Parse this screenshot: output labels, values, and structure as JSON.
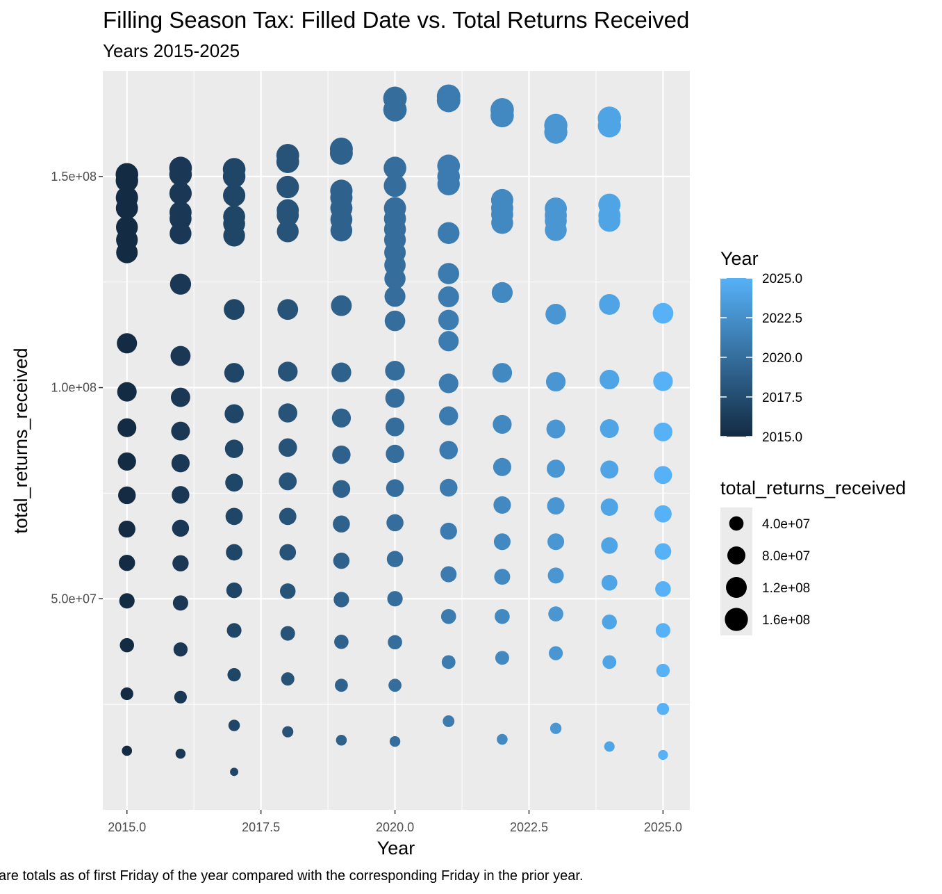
{
  "chart_data": {
    "type": "scatter",
    "title": "Filling Season Tax: Filled Date vs. Total Returns Received",
    "subtitle": "Years 2015-2025",
    "caption": "are totals as of first Friday of the year compared with the corresponding Friday in the prior year.",
    "xlabel": "Year",
    "ylabel": "total_returns_received",
    "xlim": [
      2014.55,
      2025.5
    ],
    "ylim": [
      0,
      175000000
    ],
    "x_ticks": [
      {
        "value": 2015.0,
        "label": "2015.0"
      },
      {
        "value": 2017.5,
        "label": "2017.5"
      },
      {
        "value": 2020.0,
        "label": "2020.0"
      },
      {
        "value": 2022.5,
        "label": "2022.5"
      },
      {
        "value": 2025.0,
        "label": "2025.0"
      }
    ],
    "y_ticks": [
      {
        "value": 50000000,
        "label": "5.0e+07"
      },
      {
        "value": 100000000,
        "label": "1.0e+08"
      },
      {
        "value": 150000000,
        "label": "1.5e+08"
      }
    ],
    "grid": true,
    "background": "#ebebeb",
    "color_low": "#132b43",
    "color_high": "#56b1f7",
    "legend_color": {
      "title": "Year",
      "position": "right",
      "range": [
        2015,
        2025
      ],
      "ticks": [
        {
          "value": 2025.0,
          "label": "2025.0"
        },
        {
          "value": 2022.5,
          "label": "2022.5"
        },
        {
          "value": 2020.0,
          "label": "2020.0"
        },
        {
          "value": 2017.5,
          "label": "2017.5"
        },
        {
          "value": 2015.0,
          "label": "2015.0"
        }
      ]
    },
    "legend_size": {
      "title": "total_returns_received",
      "position": "right",
      "items": [
        {
          "value": 40000000,
          "label": "4.0e+07"
        },
        {
          "value": 80000000,
          "label": "8.0e+07"
        },
        {
          "value": 120000000,
          "label": "1.2e+08"
        },
        {
          "value": 160000000,
          "label": "1.6e+08"
        }
      ]
    },
    "size_range": [
      5,
      17
    ],
    "size_domain": [
      8000000,
      170000000
    ],
    "series": [
      {
        "year": 2015,
        "values": [
          14000000,
          27500000,
          39000000,
          49500000,
          58500000,
          66500000,
          74500000,
          82500000,
          90500000,
          99000000,
          110500000,
          132000000,
          135000000,
          138000000,
          142500000,
          145000000,
          149000000,
          150500000
        ]
      },
      {
        "year": 2016,
        "values": [
          13300000,
          26700000,
          38000000,
          49000000,
          58400000,
          66700000,
          74600000,
          82100000,
          89700000,
          97700000,
          107500000,
          124500000,
          136500000,
          140000000,
          141500000,
          146000000,
          150500000,
          152000000
        ]
      },
      {
        "year": 2017,
        "values": [
          9000000,
          20000000,
          32000000,
          42500000,
          52000000,
          61000000,
          69500000,
          77500000,
          85500000,
          93800000,
          103500000,
          118500000,
          136000000,
          138800000,
          140500000,
          145500000,
          150000000,
          151700000
        ]
      },
      {
        "year": 2018,
        "values": [
          18500000,
          31000000,
          41800000,
          51800000,
          61000000,
          69500000,
          77800000,
          85800000,
          94000000,
          103800000,
          118500000,
          137000000,
          140800000,
          142000000,
          147500000,
          153500000,
          155000000
        ]
      },
      {
        "year": 2019,
        "values": [
          16500000,
          29500000,
          39800000,
          49800000,
          59000000,
          67700000,
          76000000,
          84100000,
          92800000,
          103600000,
          119400000,
          137200000,
          139800000,
          142500000,
          145000000,
          146600000,
          155500000,
          156500000
        ]
      },
      {
        "year": 2020,
        "values": [
          16200000,
          29500000,
          39700000,
          50000000,
          59400000,
          68000000,
          76200000,
          84300000,
          90700000,
          97500000,
          104000000,
          115800000,
          121600000,
          125800000,
          129000000,
          132000000,
          135000000,
          137500000,
          140000000,
          142500000,
          147800000,
          152000000,
          165800000,
          168500000
        ]
      },
      {
        "year": 2021,
        "values": [
          21000000,
          35000000,
          45800000,
          55800000,
          66000000,
          76300000,
          85200000,
          93300000,
          101000000,
          111000000,
          116000000,
          121500000,
          127000000,
          136600000,
          148200000,
          150000000,
          152500000,
          168000000,
          169000000
        ]
      },
      {
        "year": 2022,
        "values": [
          16700000,
          36000000,
          45800000,
          55200000,
          63500000,
          72200000,
          81200000,
          91300000,
          103500000,
          122500000,
          139000000,
          141000000,
          142500000,
          144400000,
          164400000,
          165800000
        ]
      },
      {
        "year": 2023,
        "values": [
          19300000,
          37100000,
          46400000,
          55500000,
          63500000,
          72000000,
          80800000,
          90200000,
          101400000,
          117400000,
          137300000,
          139500000,
          140800000,
          142400000,
          160500000,
          162100000
        ]
      },
      {
        "year": 2024,
        "values": [
          15000000,
          35000000,
          44500000,
          53800000,
          62600000,
          71700000,
          80600000,
          90300000,
          101900000,
          119700000,
          139500000,
          140800000,
          143300000,
          162000000,
          163800000
        ]
      },
      {
        "year": 2025,
        "values": [
          13000000,
          23900000,
          33000000,
          42500000,
          52300000,
          61200000,
          70100000,
          79300000,
          89500000,
          101500000,
          117600000
        ]
      }
    ]
  }
}
